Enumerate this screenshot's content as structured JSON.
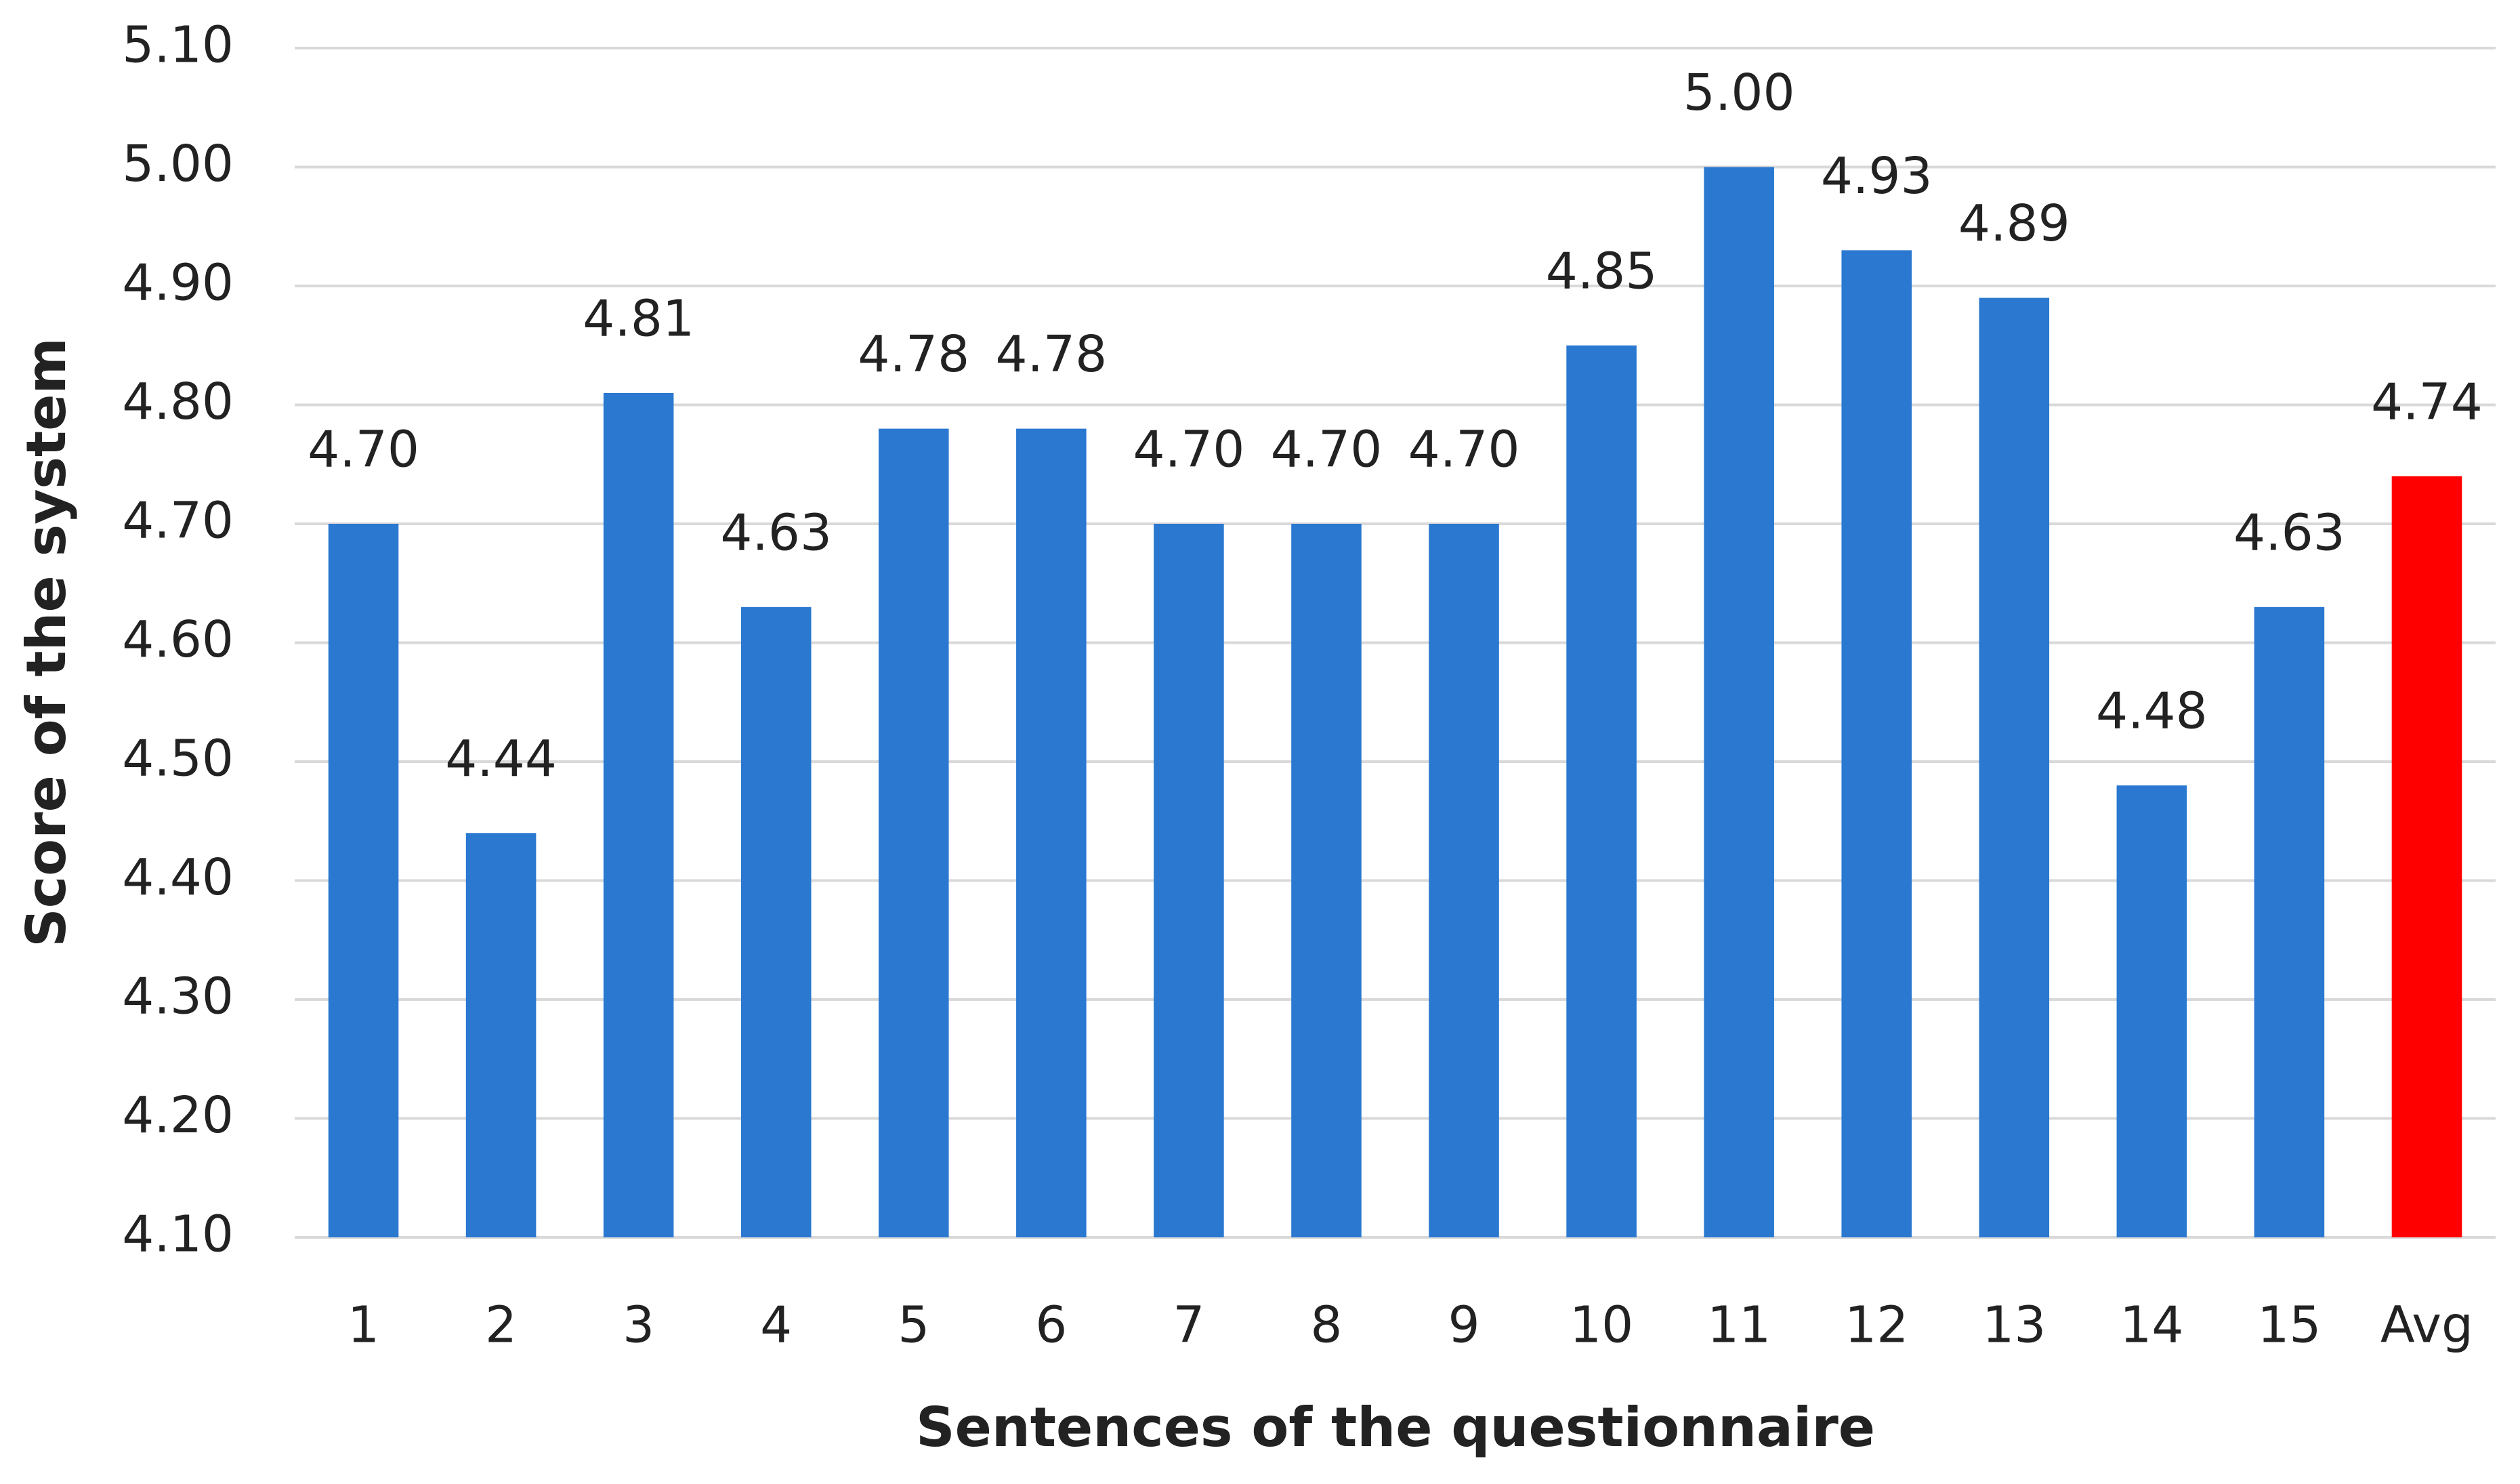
{
  "chart_data": {
    "type": "bar",
    "x_label": "Sentences of the questionnaire",
    "y_label": "Score of the system",
    "categories": [
      "1",
      "2",
      "3",
      "4",
      "5",
      "6",
      "7",
      "8",
      "9",
      "10",
      "11",
      "12",
      "13",
      "14",
      "15",
      "Avg"
    ],
    "values": [
      4.7,
      4.44,
      4.81,
      4.63,
      4.78,
      4.78,
      4.7,
      4.7,
      4.7,
      4.85,
      5,
      4.93,
      4.89,
      4.48,
      4.63,
      4.74
    ],
    "value_labels": [
      "4.70",
      "4.44",
      "4.81",
      "4.63",
      "4.78",
      "4.78",
      "4.70",
      "4.70",
      "4.70",
      "4.85",
      "5.00",
      "4.93",
      "4.89",
      "4.48",
      "4.63",
      "4.74"
    ],
    "colors": [
      "#2a78d0",
      "#2a78d0",
      "#2a78d0",
      "#2a78d0",
      "#2a78d0",
      "#2a78d0",
      "#2a78d0",
      "#2a78d0",
      "#2a78d0",
      "#2a78d0",
      "#2a78d0",
      "#2a78d0",
      "#2a78d0",
      "#2a78d0",
      "#2a78d0",
      "#ff0000"
    ],
    "ylim": [
      4.1,
      5.1
    ],
    "yticks": [
      {
        "value": 4.1,
        "label": "4.10"
      },
      {
        "value": 4.2,
        "label": "4.20"
      },
      {
        "value": 4.3,
        "label": "4.30"
      },
      {
        "value": 4.4,
        "label": "4.40"
      },
      {
        "value": 4.5,
        "label": "4.50"
      },
      {
        "value": 4.6,
        "label": "4.60"
      },
      {
        "value": 4.7,
        "label": "4.70"
      },
      {
        "value": 4.8,
        "label": "4.80"
      },
      {
        "value": 4.9,
        "label": "4.90"
      },
      {
        "value": 5,
        "label": "5.00"
      },
      {
        "value": 5.1,
        "label": "5.10"
      }
    ],
    "grid": true
  }
}
